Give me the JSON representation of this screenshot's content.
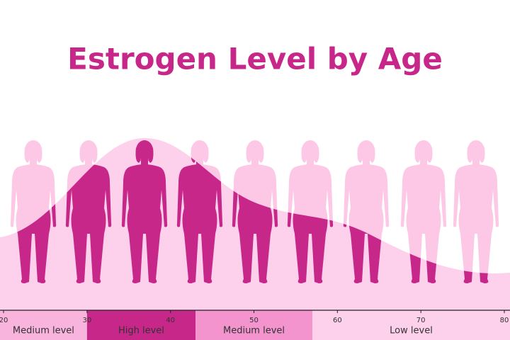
{
  "chart_data": {
    "type": "bands",
    "title": "Estrogen Level by Age",
    "xlim": [
      20,
      80
    ],
    "xticks": [
      20,
      30,
      40,
      50,
      60,
      70,
      80
    ],
    "bands": [
      {
        "name": "Medium level",
        "start": 20,
        "end": 30,
        "color": "#f8b4dd"
      },
      {
        "name": "High level",
        "start": 30,
        "end": 43,
        "color": "#c8278a"
      },
      {
        "name": "Medium level",
        "start": 43,
        "end": 57,
        "color": "#f394cf"
      },
      {
        "name": "Low level",
        "start": 57,
        "end": 80,
        "color": "#fdd0ec"
      }
    ]
  }
}
